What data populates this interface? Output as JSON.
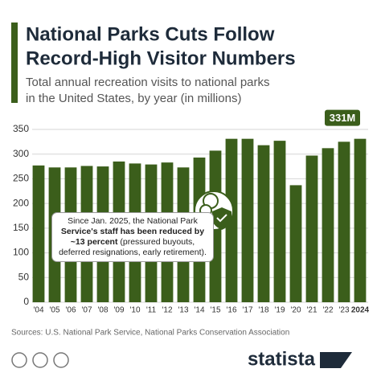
{
  "chart_data": {
    "type": "bar",
    "title": "National Parks Cuts Follow",
    "title_line2": "Record-High Visitor Numbers",
    "subtitle": "Total annual recreation visits to national parks",
    "subtitle_line2": "in the United States, by year (in millions)",
    "categories": [
      "'04",
      "'05",
      "'06",
      "'07",
      "'08",
      "'09",
      "'10",
      "'11",
      "'12",
      "'13",
      "'14",
      "'15",
      "'16",
      "'17",
      "'18",
      "'19",
      "'20",
      "'21",
      "'22",
      "'23",
      "2024"
    ],
    "values": [
      277,
      273,
      273,
      276,
      275,
      285,
      281,
      279,
      283,
      273,
      293,
      307,
      331,
      331,
      318,
      327,
      237,
      297,
      312,
      325,
      331
    ],
    "value_labels": [
      null,
      null,
      null,
      null,
      null,
      null,
      null,
      null,
      null,
      null,
      null,
      null,
      null,
      null,
      null,
      null,
      null,
      null,
      null,
      null,
      "331M"
    ],
    "color": "#3b5e1b",
    "ylim": [
      0,
      350
    ],
    "yticks": [
      0,
      50,
      100,
      150,
      200,
      250,
      300,
      350
    ],
    "grid": true,
    "annotation": {
      "before": "Since Jan. 2025, the National Park ",
      "bold": "Service's staff has been reduced by ~13 percent",
      "after": " (pressured buyouts, deferred resignations, early retirement)."
    },
    "source": "Sources: U.S. National Park Service, National Parks Conservation Association",
    "logo_text": "statista"
  }
}
